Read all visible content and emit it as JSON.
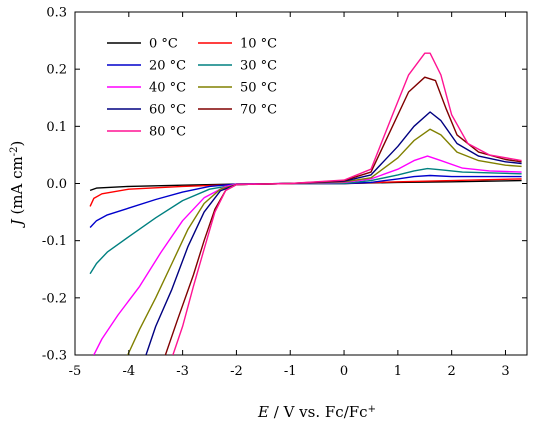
{
  "chart_data": {
    "type": "line",
    "xlabel": "E / V vs. Fc/Fc+",
    "ylabel": "J (mA cm-2)",
    "xlim": [
      -5,
      3.4
    ],
    "ylim": [
      -0.3,
      0.3
    ],
    "xticks": [
      -5,
      -4,
      -3,
      -2,
      -1,
      0,
      1,
      2,
      3
    ],
    "yticks": [
      -0.3,
      -0.2,
      -0.1,
      0.0,
      0.1,
      0.2,
      0.3
    ],
    "xtick_labels": [
      "-5",
      "-4",
      "-3",
      "-2",
      "-1",
      "0",
      "1",
      "2",
      "3"
    ],
    "ytick_labels": [
      "-0.3",
      "-0.2",
      "-0.1",
      "0.0",
      "0.1",
      "0.2",
      "0.3"
    ],
    "legend_position": "top-left",
    "grid": false,
    "series": [
      {
        "name": "0 °C",
        "color": "#000000",
        "points": [
          [
            -4.72,
            -0.012
          ],
          [
            -4.6,
            -0.008
          ],
          [
            -4.0,
            -0.005
          ],
          [
            -3.0,
            -0.003
          ],
          [
            -2.0,
            -0.001
          ],
          [
            -1.0,
            0.0
          ],
          [
            0.0,
            0.0
          ],
          [
            1.0,
            0.002
          ],
          [
            2.0,
            0.003
          ],
          [
            3.3,
            0.005
          ]
        ]
      },
      {
        "name": "10 °C",
        "color": "#ff0000",
        "points": [
          [
            -4.72,
            -0.04
          ],
          [
            -4.65,
            -0.026
          ],
          [
            -4.5,
            -0.018
          ],
          [
            -4.0,
            -0.01
          ],
          [
            -3.0,
            -0.005
          ],
          [
            -2.0,
            -0.002
          ],
          [
            -1.0,
            0.0
          ],
          [
            0.0,
            0.0
          ],
          [
            1.0,
            0.003
          ],
          [
            2.0,
            0.005
          ],
          [
            3.3,
            0.008
          ]
        ]
      },
      {
        "name": "20 °C",
        "color": "#0000cc",
        "points": [
          [
            -4.72,
            -0.077
          ],
          [
            -4.6,
            -0.065
          ],
          [
            -4.4,
            -0.055
          ],
          [
            -4.0,
            -0.043
          ],
          [
            -3.5,
            -0.028
          ],
          [
            -3.0,
            -0.015
          ],
          [
            -2.5,
            -0.005
          ],
          [
            -2.0,
            -0.001
          ],
          [
            -1.0,
            0.0
          ],
          [
            0.0,
            0.0
          ],
          [
            0.5,
            0.002
          ],
          [
            1.0,
            0.008
          ],
          [
            1.3,
            0.012
          ],
          [
            1.6,
            0.014
          ],
          [
            2.0,
            0.012
          ],
          [
            2.5,
            0.012
          ],
          [
            3.3,
            0.012
          ]
        ]
      },
      {
        "name": "30 °C",
        "color": "#008080",
        "points": [
          [
            -4.72,
            -0.158
          ],
          [
            -4.6,
            -0.14
          ],
          [
            -4.4,
            -0.12
          ],
          [
            -4.0,
            -0.093
          ],
          [
            -3.5,
            -0.06
          ],
          [
            -3.0,
            -0.03
          ],
          [
            -2.5,
            -0.01
          ],
          [
            -2.0,
            -0.002
          ],
          [
            -1.0,
            0.0
          ],
          [
            0.0,
            0.0
          ],
          [
            0.5,
            0.005
          ],
          [
            1.0,
            0.015
          ],
          [
            1.3,
            0.022
          ],
          [
            1.55,
            0.026
          ],
          [
            1.8,
            0.024
          ],
          [
            2.2,
            0.02
          ],
          [
            3.3,
            0.017
          ]
        ]
      },
      {
        "name": "40 °C",
        "color": "#ff00ff",
        "points": [
          [
            -4.65,
            -0.3
          ],
          [
            -4.5,
            -0.272
          ],
          [
            -4.2,
            -0.23
          ],
          [
            -3.8,
            -0.18
          ],
          [
            -3.4,
            -0.12
          ],
          [
            -3.0,
            -0.065
          ],
          [
            -2.6,
            -0.025
          ],
          [
            -2.2,
            -0.005
          ],
          [
            -2.0,
            -0.001
          ],
          [
            -1.0,
            0.0
          ],
          [
            0.0,
            0.002
          ],
          [
            0.5,
            0.008
          ],
          [
            1.0,
            0.025
          ],
          [
            1.3,
            0.04
          ],
          [
            1.55,
            0.048
          ],
          [
            1.8,
            0.04
          ],
          [
            2.2,
            0.027
          ],
          [
            2.7,
            0.022
          ],
          [
            3.3,
            0.02
          ]
        ]
      },
      {
        "name": "50 °C",
        "color": "#808000",
        "points": [
          [
            -4.02,
            -0.3
          ],
          [
            -3.8,
            -0.255
          ],
          [
            -3.5,
            -0.2
          ],
          [
            -3.2,
            -0.14
          ],
          [
            -2.9,
            -0.08
          ],
          [
            -2.6,
            -0.035
          ],
          [
            -2.3,
            -0.01
          ],
          [
            -2.0,
            -0.002
          ],
          [
            -1.0,
            0.0
          ],
          [
            0.0,
            0.003
          ],
          [
            0.5,
            0.01
          ],
          [
            1.0,
            0.045
          ],
          [
            1.3,
            0.075
          ],
          [
            1.6,
            0.095
          ],
          [
            1.8,
            0.085
          ],
          [
            2.1,
            0.055
          ],
          [
            2.5,
            0.04
          ],
          [
            3.0,
            0.032
          ],
          [
            3.3,
            0.03
          ]
        ]
      },
      {
        "name": "60 °C",
        "color": "#000080",
        "points": [
          [
            -3.68,
            -0.3
          ],
          [
            -3.5,
            -0.25
          ],
          [
            -3.2,
            -0.185
          ],
          [
            -2.9,
            -0.11
          ],
          [
            -2.6,
            -0.05
          ],
          [
            -2.3,
            -0.013
          ],
          [
            -2.0,
            -0.002
          ],
          [
            -1.0,
            0.0
          ],
          [
            0.0,
            0.004
          ],
          [
            0.5,
            0.015
          ],
          [
            1.0,
            0.065
          ],
          [
            1.3,
            0.1
          ],
          [
            1.6,
            0.125
          ],
          [
            1.8,
            0.11
          ],
          [
            2.1,
            0.07
          ],
          [
            2.5,
            0.048
          ],
          [
            3.0,
            0.038
          ],
          [
            3.3,
            0.035
          ]
        ]
      },
      {
        "name": "70 °C",
        "color": "#800000",
        "points": [
          [
            -3.32,
            -0.3
          ],
          [
            -3.1,
            -0.24
          ],
          [
            -2.8,
            -0.16
          ],
          [
            -2.6,
            -0.1
          ],
          [
            -2.4,
            -0.045
          ],
          [
            -2.2,
            -0.012
          ],
          [
            -2.0,
            -0.002
          ],
          [
            -1.0,
            0.0
          ],
          [
            0.0,
            0.005
          ],
          [
            0.5,
            0.02
          ],
          [
            0.9,
            0.1
          ],
          [
            1.2,
            0.16
          ],
          [
            1.5,
            0.186
          ],
          [
            1.7,
            0.18
          ],
          [
            1.9,
            0.13
          ],
          [
            2.1,
            0.085
          ],
          [
            2.5,
            0.055
          ],
          [
            3.0,
            0.042
          ],
          [
            3.3,
            0.038
          ]
        ]
      },
      {
        "name": "80 °C",
        "color": "#ff1493",
        "points": [
          [
            -3.18,
            -0.3
          ],
          [
            -3.0,
            -0.25
          ],
          [
            -2.8,
            -0.18
          ],
          [
            -2.6,
            -0.115
          ],
          [
            -2.4,
            -0.05
          ],
          [
            -2.2,
            -0.012
          ],
          [
            -2.0,
            -0.002
          ],
          [
            -1.0,
            0.0
          ],
          [
            0.0,
            0.006
          ],
          [
            0.5,
            0.025
          ],
          [
            0.9,
            0.12
          ],
          [
            1.2,
            0.19
          ],
          [
            1.5,
            0.228
          ],
          [
            1.6,
            0.228
          ],
          [
            1.8,
            0.19
          ],
          [
            2.0,
            0.12
          ],
          [
            2.3,
            0.07
          ],
          [
            2.7,
            0.05
          ],
          [
            3.3,
            0.04
          ]
        ]
      }
    ]
  }
}
